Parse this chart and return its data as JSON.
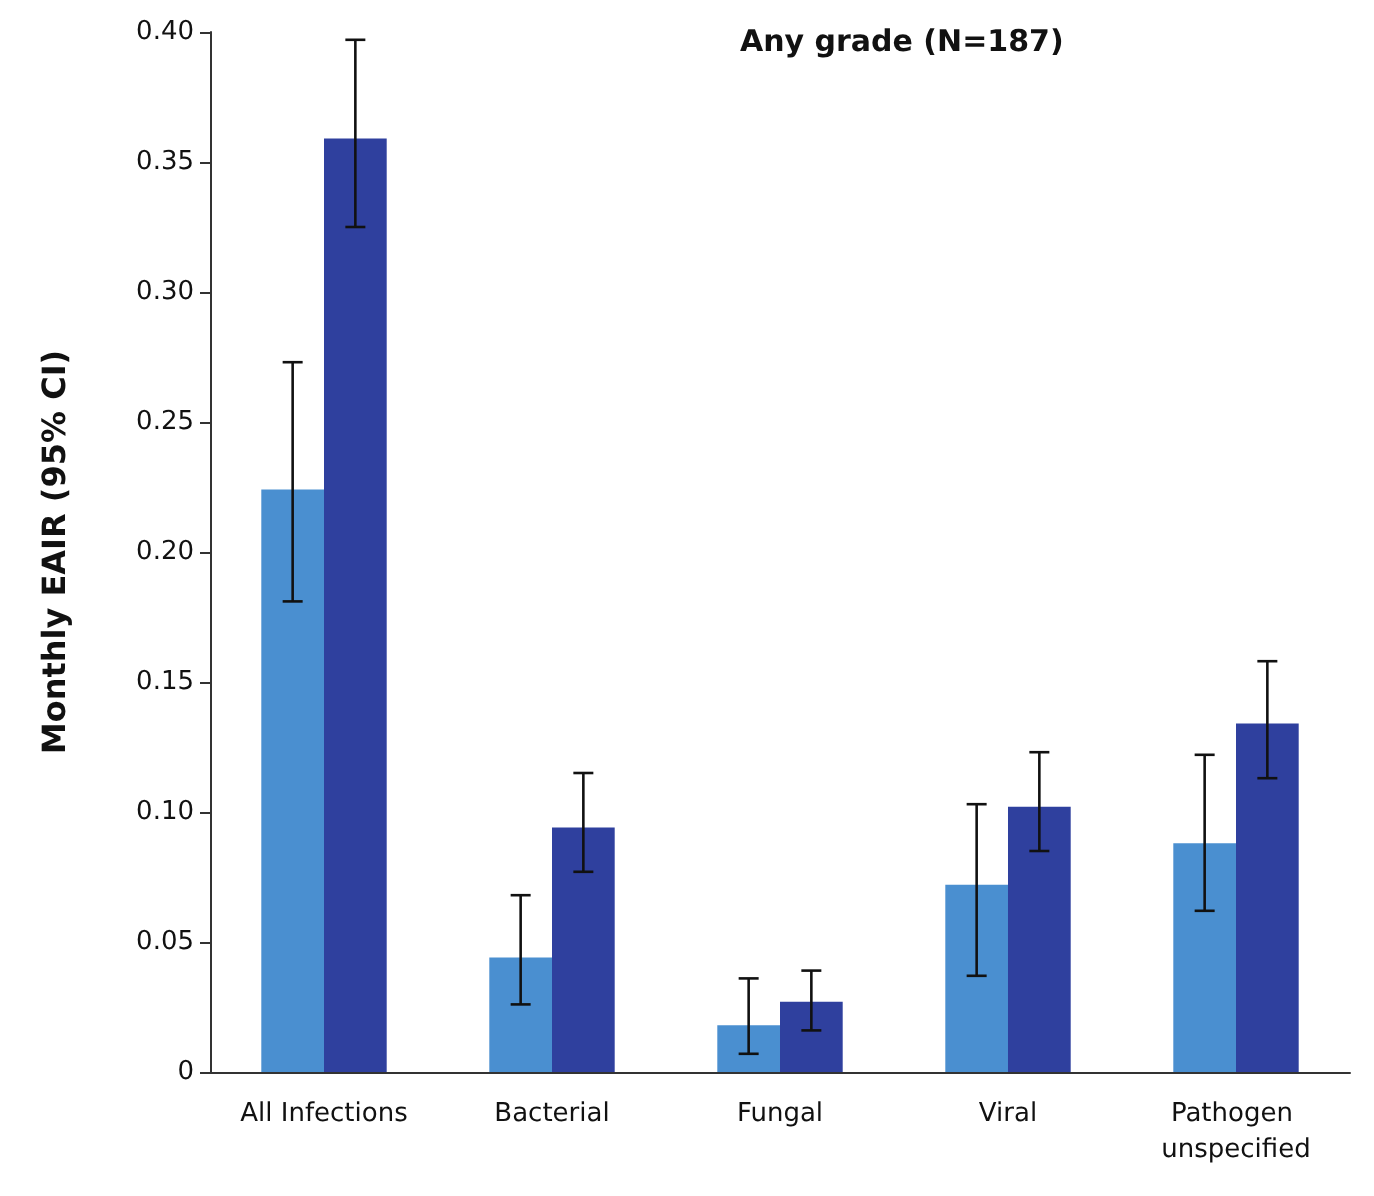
{
  "chart_data": {
    "type": "bar",
    "title": "Any grade (N=187)",
    "ylabel": "Monthly EAIR (95% CI)",
    "categories": [
      "All Infections",
      "Bacterial",
      "Fungal",
      "Viral",
      "Pathogen unspecified"
    ],
    "series": [
      {
        "color": "#4a8fd0",
        "values": [
          0.224,
          0.044,
          0.018,
          0.072,
          0.088
        ],
        "errors": [
          [
            0.181,
            0.273
          ],
          [
            0.026,
            0.068
          ],
          [
            0.007,
            0.036
          ],
          [
            0.037,
            0.103
          ],
          [
            0.062,
            0.122
          ]
        ]
      },
      {
        "color": "#2f409e",
        "values": [
          0.359,
          0.094,
          0.027,
          0.102,
          0.134
        ],
        "errors": [
          [
            0.325,
            0.397
          ],
          [
            0.077,
            0.115
          ],
          [
            0.016,
            0.039
          ],
          [
            0.085,
            0.123
          ],
          [
            0.113,
            0.158
          ]
        ]
      }
    ],
    "ylim": [
      0,
      0.4
    ],
    "yticks": [
      0,
      0.05,
      {
        "value": 0.1,
        "label": "0.10"
      },
      0.15,
      {
        "value": 0.2,
        "label": "0.20"
      },
      0.25,
      {
        "value": 0.3,
        "label": "0.30"
      },
      0.35,
      {
        "value": 0.4,
        "label": "0.40"
      }
    ],
    "grid": false
  }
}
